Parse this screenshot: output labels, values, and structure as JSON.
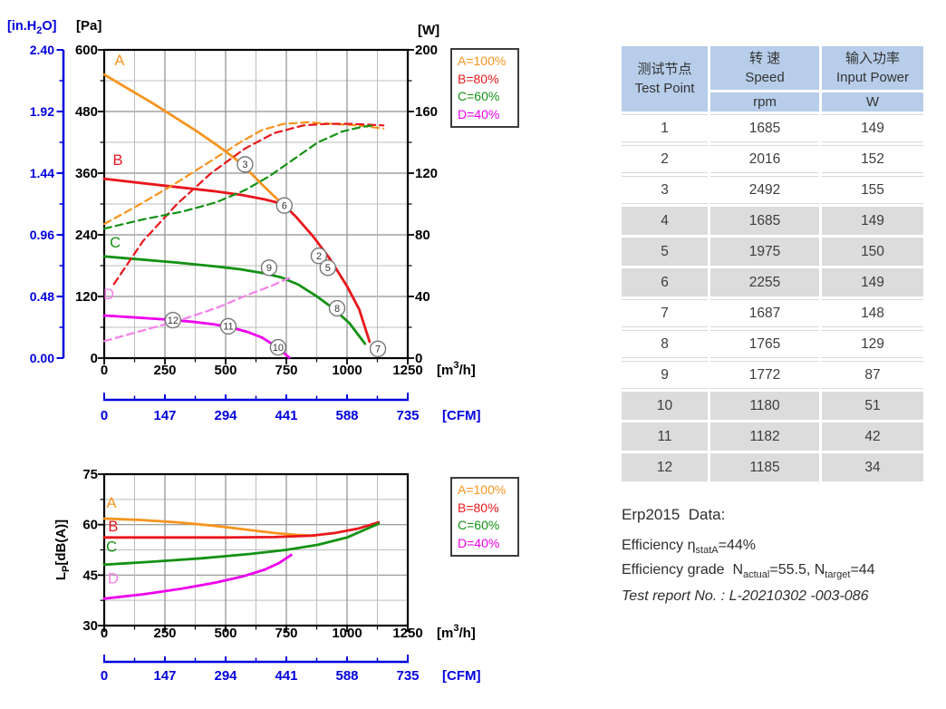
{
  "colors": {
    "orange": "#f7941e",
    "red": "#e8171c",
    "green": "#149114",
    "magenta": "#ee00ee",
    "pink": "#f57fe8",
    "blue_axis": "#0000dd",
    "grid_major": "#8f8f8f",
    "grid_minor": "#bdbdbd",
    "marker_stroke": "#777777",
    "table_header_bg": "#b7cde9",
    "table_alt_bg": "#dcdcdc"
  },
  "legend": {
    "position": "right-of-plot",
    "items": [
      {
        "label": "A=100%",
        "color": "#f7941e"
      },
      {
        "label": "B=80%",
        "color": "#e8171c"
      },
      {
        "label": "C=60%",
        "color": "#149114"
      },
      {
        "label": "D=40%",
        "color": "#ee00ee"
      }
    ]
  },
  "chart_data": [
    {
      "type": "line",
      "title": "Static pressure and input power vs airflow",
      "x_axis": {
        "unit_parts": [
          {
            "t": "[m"
          },
          {
            "t": "3",
            "sup": true
          },
          {
            "t": "/h]"
          }
        ],
        "ticks": [
          0,
          250,
          500,
          750,
          1000,
          1250
        ],
        "range": [
          0,
          1250
        ],
        "minor_step": 125
      },
      "y_axis_pa": {
        "unit": "[Pa]",
        "ticks": [
          600,
          480,
          360,
          240,
          120,
          0
        ],
        "range": [
          0,
          600
        ],
        "minor_step": 60
      },
      "y_axis_inh2o": {
        "unit_parts": [
          {
            "t": "[in.H"
          },
          {
            "t": "2",
            "sub": true
          },
          {
            "t": "O]"
          }
        ],
        "ticks": [
          "2.40",
          "1.92",
          "1.44",
          "0.96",
          "0.48",
          "0.00"
        ],
        "range": [
          0,
          2.4
        ]
      },
      "y_axis_w": {
        "unit": "[W]",
        "ticks": [
          200,
          160,
          120,
          80,
          40,
          0
        ],
        "range": [
          0,
          200
        ],
        "minor_step": 20
      },
      "cfm_axis": {
        "unit": "[CFM]",
        "ticks": [
          0,
          147,
          294,
          441,
          588,
          735
        ],
        "range": [
          0,
          735
        ]
      },
      "grid": true,
      "series": [
        {
          "name": "A=100% static pressure",
          "color": "#f7941e",
          "dash": false,
          "axis": "pa",
          "points": [
            [
              0,
              552
            ],
            [
              100,
              524
            ],
            [
              200,
              496
            ],
            [
              300,
              466
            ],
            [
              380,
              442
            ],
            [
              460,
              416
            ],
            [
              540,
              388
            ],
            [
              600,
              362
            ],
            [
              650,
              338
            ],
            [
              700,
              315
            ],
            [
              735,
              300
            ]
          ]
        },
        {
          "name": "B=80% static pressure",
          "color": "#e8171c",
          "dash": false,
          "axis": "pa",
          "points": [
            [
              0,
              349
            ],
            [
              150,
              341
            ],
            [
              300,
              333
            ],
            [
              450,
              325
            ],
            [
              560,
              318
            ],
            [
              660,
              309
            ],
            [
              720,
              302
            ],
            [
              745,
              296
            ],
            [
              790,
              275
            ],
            [
              860,
              237
            ],
            [
              930,
              193
            ],
            [
              1000,
              140
            ],
            [
              1050,
              95
            ],
            [
              1093,
              32
            ]
          ]
        },
        {
          "name": "C=60% static pressure",
          "color": "#149114",
          "dash": false,
          "axis": "pa",
          "points": [
            [
              0,
              198
            ],
            [
              150,
              192
            ],
            [
              300,
              186
            ],
            [
              450,
              179
            ],
            [
              560,
              173
            ],
            [
              660,
              165
            ],
            [
              730,
              157
            ],
            [
              800,
              143
            ],
            [
              870,
              122
            ],
            [
              940,
              98
            ],
            [
              1010,
              68
            ],
            [
              1074,
              28
            ]
          ]
        },
        {
          "name": "D=40% static pressure",
          "color": "#ee00ee",
          "dash": false,
          "axis": "pa",
          "points": [
            [
              0,
              83
            ],
            [
              130,
              79
            ],
            [
              260,
              75
            ],
            [
              360,
              71
            ],
            [
              450,
              66
            ],
            [
              520,
              60
            ],
            [
              590,
              51
            ],
            [
              650,
              40
            ],
            [
              710,
              22
            ],
            [
              762,
              1
            ]
          ]
        },
        {
          "name": "A=100% input power",
          "color": "#f7941e",
          "dash": true,
          "axis": "w",
          "points": [
            [
              0,
              87
            ],
            [
              150,
              100
            ],
            [
              300,
              114
            ],
            [
              440,
              128
            ],
            [
              560,
              140
            ],
            [
              650,
              148
            ],
            [
              740,
              152
            ],
            [
              840,
              153
            ],
            [
              940,
              152
            ],
            [
              1040,
              151
            ],
            [
              1150,
              149
            ]
          ]
        },
        {
          "name": "B=80% input power",
          "color": "#e8171c",
          "dash": true,
          "axis": "w",
          "points": [
            [
              40,
              48
            ],
            [
              160,
              76
            ],
            [
              300,
              100
            ],
            [
              440,
              120
            ],
            [
              580,
              136
            ],
            [
              700,
              146
            ],
            [
              820,
              151
            ],
            [
              920,
              152
            ],
            [
              1020,
              152
            ],
            [
              1150,
              151
            ]
          ]
        },
        {
          "name": "C=60% input power",
          "color": "#149114",
          "dash": true,
          "axis": "w",
          "points": [
            [
              0,
              84
            ],
            [
              160,
              90
            ],
            [
              320,
              95
            ],
            [
              460,
              101
            ],
            [
              580,
              109
            ],
            [
              680,
              118
            ],
            [
              780,
              129
            ],
            [
              880,
              140
            ],
            [
              980,
              147
            ],
            [
              1060,
              150
            ],
            [
              1110,
              151
            ]
          ]
        },
        {
          "name": "D=40% input power",
          "color": "#f57fe8",
          "dash": true,
          "axis": "w",
          "points": [
            [
              0,
              11
            ],
            [
              160,
              18
            ],
            [
              320,
              25
            ],
            [
              470,
              33
            ],
            [
              590,
              41
            ],
            [
              690,
              47
            ],
            [
              762,
              52
            ]
          ]
        }
      ],
      "curve_labels": [
        {
          "text": "A",
          "color": "#f7941e",
          "x": 63,
          "y": 570
        },
        {
          "text": "B",
          "color": "#e8171c",
          "x": 56,
          "y": 376
        },
        {
          "text": "C",
          "color": "#149114",
          "x": 45,
          "y": 215
        },
        {
          "text": "D",
          "color": "#f57fe8",
          "x": 19,
          "y": 115
        }
      ],
      "markers": [
        {
          "n": "2",
          "x": 884,
          "y": 199
        },
        {
          "n": "3",
          "x": 580,
          "y": 377
        },
        {
          "n": "5",
          "x": 921,
          "y": 176
        },
        {
          "n": "6",
          "x": 742,
          "y": 297
        },
        {
          "n": "7",
          "x": 1127,
          "y": 18
        },
        {
          "n": "8",
          "x": 959,
          "y": 97
        },
        {
          "n": "9",
          "x": 679,
          "y": 176
        },
        {
          "n": "10",
          "x": 716,
          "y": 21
        },
        {
          "n": "11",
          "x": 511,
          "y": 62
        },
        {
          "n": "12",
          "x": 283,
          "y": 74
        }
      ]
    },
    {
      "type": "line",
      "title": "Sound pressure level vs airflow",
      "x_axis": {
        "unit_parts": [
          {
            "t": "[m"
          },
          {
            "t": "3",
            "sup": true
          },
          {
            "t": "/h]"
          }
        ],
        "ticks": [
          0,
          250,
          500,
          750,
          1000,
          1250
        ],
        "range": [
          0,
          1250
        ],
        "minor_step": 125
      },
      "y_axis_db": {
        "unit_parts": [
          {
            "t": "L"
          },
          {
            "t": "P",
            "sub": true
          },
          {
            "t": "[dB(A)]"
          }
        ],
        "ticks": [
          75,
          60,
          45,
          30
        ],
        "range": [
          30,
          75
        ],
        "minor_step": 7.5
      },
      "cfm_axis": {
        "unit": "[CFM]",
        "ticks": [
          0,
          147,
          294,
          441,
          588,
          735
        ],
        "range": [
          0,
          735
        ]
      },
      "grid": true,
      "series": [
        {
          "name": "A=100% noise",
          "color": "#f7941e",
          "dash": false,
          "points": [
            [
              0,
              61.8
            ],
            [
              150,
              61.4
            ],
            [
              300,
              60.7
            ],
            [
              450,
              59.7
            ],
            [
              600,
              58.4
            ],
            [
              700,
              57.5
            ],
            [
              800,
              56.9
            ],
            [
              870,
              56.7
            ]
          ]
        },
        {
          "name": "B=80% noise",
          "color": "#e8171c",
          "dash": false,
          "points": [
            [
              0,
              56.2
            ],
            [
              250,
              56.2
            ],
            [
              500,
              56.2
            ],
            [
              700,
              56.3
            ],
            [
              850,
              56.7
            ],
            [
              950,
              57.5
            ],
            [
              1050,
              58.9
            ],
            [
              1130,
              60.7
            ]
          ]
        },
        {
          "name": "C=60% noise",
          "color": "#149114",
          "dash": false,
          "points": [
            [
              0,
              48.1
            ],
            [
              200,
              49
            ],
            [
              400,
              50
            ],
            [
              600,
              51.3
            ],
            [
              750,
              52.5
            ],
            [
              880,
              54
            ],
            [
              1000,
              56.2
            ],
            [
              1130,
              60.3
            ]
          ]
        },
        {
          "name": "D=40% noise",
          "color": "#ee00ee",
          "dash": false,
          "points": [
            [
              0,
              38
            ],
            [
              160,
              39.3
            ],
            [
              320,
              41
            ],
            [
              460,
              42.8
            ],
            [
              570,
              44.6
            ],
            [
              660,
              46.6
            ],
            [
              720,
              48.6
            ],
            [
              770,
              51
            ]
          ]
        }
      ],
      "curve_labels": [
        {
          "text": "A",
          "color": "#f7941e",
          "x": 30,
          "y": 65
        },
        {
          "text": "B",
          "color": "#e8171c",
          "x": 37,
          "y": 58
        },
        {
          "text": "C",
          "color": "#149114",
          "x": 30,
          "y": 52
        },
        {
          "text": "D",
          "color": "#f57fe8",
          "x": 37,
          "y": 42.5
        }
      ]
    }
  ],
  "table": {
    "col1_header_cn": "测试节点",
    "col1_header_en": "Test Point",
    "col2_header_cn": "转 速",
    "col2_header_en": "Speed",
    "col2_unit": "rpm",
    "col3_header_cn": "输入功率",
    "col3_header_en": "Input Power",
    "col3_unit": "W",
    "rows": [
      {
        "point": "1",
        "speed": "1685",
        "power": "149"
      },
      {
        "point": "2",
        "speed": "2016",
        "power": "152"
      },
      {
        "point": "3",
        "speed": "2492",
        "power": "155"
      },
      {
        "point": "4",
        "speed": "1685",
        "power": "149"
      },
      {
        "point": "5",
        "speed": "1975",
        "power": "150"
      },
      {
        "point": "6",
        "speed": "2255",
        "power": "149"
      },
      {
        "point": "7",
        "speed": "1687",
        "power": "148"
      },
      {
        "point": "8",
        "speed": "1765",
        "power": "129"
      },
      {
        "point": "9",
        "speed": "1772",
        "power": "87"
      },
      {
        "point": "10",
        "speed": "1180",
        "power": "51"
      },
      {
        "point": "11",
        "speed": "1182",
        "power": "42"
      },
      {
        "point": "12",
        "speed": "1185",
        "power": "34"
      }
    ]
  },
  "notes": {
    "title": "Erp2015  Data:",
    "efficiency": [
      {
        "t": "Efficiency η"
      },
      {
        "s": "statA"
      },
      {
        "t": "=44%"
      }
    ],
    "grade": [
      {
        "t": "Efficiency grade  N"
      },
      {
        "s": "actual"
      },
      {
        "t": "=55.5, N"
      },
      {
        "s": "target"
      },
      {
        "t": "=44"
      }
    ],
    "report": "Test report No. : L-20210302 -003-086"
  }
}
